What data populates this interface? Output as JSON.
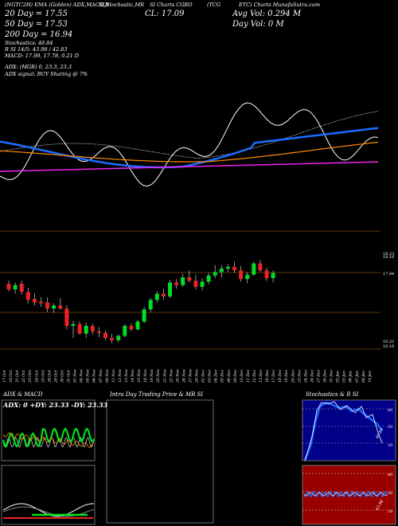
{
  "header": {
    "line1": [
      "(NGTC2H) EMA (Golden) ADX,MACD,R",
      "SI,Stochastic,MR",
      "SI Charts CGRO",
      "(TCG",
      "ETC) Charts MunafaSutra.com"
    ],
    "ma20": "20 Day = 17.55",
    "ma50": "50 Day = 17.53",
    "ma200": "200 Day = 16.94",
    "stoch": "Stochastics: 46.84",
    "rsi": "R          SI 14/5: 43.98 / 42.83",
    "macd": "MACD: 17.99, 17.78, 0.21 D",
    "adx": "ADX:                              (MGR) 0, 23.3, 23.3",
    "adx_signal": "ADX  signal:                                   BUY Sharing @ 7%",
    "cl": "CL: 17.09",
    "avg_vol": "Avg Vol: 0.294  M",
    "day_vol": "Day Vol: 0   M"
  },
  "colors": {
    "up": "#00dd22",
    "down": "#ee2222",
    "ma_blue": "#1a6cff",
    "ma_orange": "#ff8c00",
    "ma_magenta": "#ee22ee",
    "ref_line": "#7a4a12",
    "stoch_bg": "#000088",
    "rsi_bg": "#990000"
  },
  "price_labels": [
    "18.23",
    "18.16",
    "17.84",
    "16.22",
    "16.16"
  ],
  "date_labels": [
    "17 Oct",
    "18 Oct",
    "21 Oct",
    "22 Oct",
    "23 Oct",
    "24 Oct",
    "25 Oct",
    "28 Oct",
    "29 Oct",
    "30 Oct",
    "31 Oct",
    "01 Nov",
    "04 Nov",
    "05 Nov",
    "06 Nov",
    "07 Nov",
    "08 Nov",
    "11 Nov",
    "12 Nov",
    "13 Nov",
    "14 Nov",
    "15 Nov",
    "18 Nov",
    "19 Nov",
    "20 Nov",
    "21 Nov",
    "22 Nov",
    "25 Nov",
    "26 Nov",
    "27 Nov",
    "29 Nov",
    "02 Dec",
    "03 Dec",
    "04 Dec",
    "05 Dec",
    "06 Dec",
    "09 Dec",
    "10 Dec",
    "11 Dec",
    "12 Dec",
    "13 Dec",
    "16 Dec",
    "17 Dec",
    "18 Dec",
    "19 Dec",
    "20 Dec",
    "23 Dec",
    "24 Dec",
    "26 Dec",
    "27 Dec",
    "30 Dec",
    "31 Dec",
    "02 Jan",
    "03 Jan",
    "06 Jan",
    "07 Jan",
    "08 Jan",
    "10 Jan"
  ],
  "panels": {
    "adx_title": "ADX  & MACD",
    "adx_values": "ADX: 0  +DY: 23.33  -DY: 23.33",
    "intraday_title": "Intra  Day Trading Price  & MR                         SI",
    "stoch_title": "Stochastics & R                         SI",
    "stoch_scale": [
      "80",
      "50",
      "20"
    ],
    "stoch_value": "46.84",
    "rsi_scale": [
      "80",
      "50",
      "20"
    ],
    "rsi_value": "43.98"
  },
  "chart_data": {
    "type": "candlestick",
    "candles": [
      {
        "o": 17.55,
        "h": 17.62,
        "l": 17.38,
        "c": 17.42
      },
      {
        "o": 17.42,
        "h": 17.58,
        "l": 17.32,
        "c": 17.52
      },
      {
        "o": 17.55,
        "h": 17.62,
        "l": 17.3,
        "c": 17.37
      },
      {
        "o": 17.36,
        "h": 17.46,
        "l": 17.1,
        "c": 17.18
      },
      {
        "o": 17.2,
        "h": 17.34,
        "l": 17.05,
        "c": 17.12
      },
      {
        "o": 17.14,
        "h": 17.24,
        "l": 17.02,
        "c": 17.1
      },
      {
        "o": 17.12,
        "h": 17.24,
        "l": 16.9,
        "c": 16.98
      },
      {
        "o": 16.98,
        "h": 17.1,
        "l": 16.88,
        "c": 17.05
      },
      {
        "o": 17.05,
        "h": 17.22,
        "l": 16.95,
        "c": 16.98
      },
      {
        "o": 16.98,
        "h": 17.06,
        "l": 16.5,
        "c": 16.58
      },
      {
        "o": 16.58,
        "h": 16.7,
        "l": 16.3,
        "c": 16.62
      },
      {
        "o": 16.62,
        "h": 16.68,
        "l": 16.38,
        "c": 16.4
      },
      {
        "o": 16.4,
        "h": 16.65,
        "l": 16.3,
        "c": 16.58
      },
      {
        "o": 16.58,
        "h": 16.62,
        "l": 16.38,
        "c": 16.45
      },
      {
        "o": 16.45,
        "h": 16.55,
        "l": 16.32,
        "c": 16.42
      },
      {
        "o": 16.42,
        "h": 16.48,
        "l": 16.25,
        "c": 16.3
      },
      {
        "o": 16.3,
        "h": 16.4,
        "l": 16.18,
        "c": 16.25
      },
      {
        "o": 16.25,
        "h": 16.38,
        "l": 16.2,
        "c": 16.35
      },
      {
        "o": 16.35,
        "h": 16.62,
        "l": 16.32,
        "c": 16.58
      },
      {
        "o": 16.58,
        "h": 16.64,
        "l": 16.46,
        "c": 16.5
      },
      {
        "o": 16.5,
        "h": 16.72,
        "l": 16.48,
        "c": 16.68
      },
      {
        "o": 16.68,
        "h": 17.02,
        "l": 16.64,
        "c": 16.96
      },
      {
        "o": 16.96,
        "h": 17.22,
        "l": 16.9,
        "c": 17.18
      },
      {
        "o": 17.18,
        "h": 17.38,
        "l": 17.12,
        "c": 17.32
      },
      {
        "o": 17.32,
        "h": 17.44,
        "l": 17.18,
        "c": 17.26
      },
      {
        "o": 17.26,
        "h": 17.64,
        "l": 17.22,
        "c": 17.58
      },
      {
        "o": 17.58,
        "h": 17.66,
        "l": 17.44,
        "c": 17.52
      },
      {
        "o": 17.52,
        "h": 17.78,
        "l": 17.48,
        "c": 17.7
      },
      {
        "o": 17.7,
        "h": 17.86,
        "l": 17.58,
        "c": 17.62
      },
      {
        "o": 17.62,
        "h": 17.76,
        "l": 17.42,
        "c": 17.48
      },
      {
        "o": 17.48,
        "h": 17.68,
        "l": 17.4,
        "c": 17.6
      },
      {
        "o": 17.6,
        "h": 17.8,
        "l": 17.54,
        "c": 17.74
      },
      {
        "o": 17.74,
        "h": 17.98,
        "l": 17.68,
        "c": 17.82
      },
      {
        "o": 17.82,
        "h": 17.98,
        "l": 17.7,
        "c": 17.9
      },
      {
        "o": 17.9,
        "h": 18.0,
        "l": 17.82,
        "c": 17.94
      },
      {
        "o": 17.94,
        "h": 18.06,
        "l": 17.8,
        "c": 17.86
      },
      {
        "o": 17.86,
        "h": 17.96,
        "l": 17.6,
        "c": 17.66
      },
      {
        "o": 17.66,
        "h": 17.82,
        "l": 17.56,
        "c": 17.76
      },
      {
        "o": 17.76,
        "h": 18.06,
        "l": 17.74,
        "c": 18.02
      },
      {
        "o": 18.02,
        "h": 18.1,
        "l": 17.82,
        "c": 17.86
      },
      {
        "o": 17.86,
        "h": 17.92,
        "l": 17.62,
        "c": 17.68
      },
      {
        "o": 17.68,
        "h": 17.86,
        "l": 17.58,
        "c": 17.8
      }
    ],
    "y_axis_labels": [
      "18.23",
      "18.16",
      "17.84",
      "16.22",
      "16.16"
    ],
    "indicators": [
      "EMA 20",
      "EMA 50",
      "EMA 200",
      "close line"
    ]
  }
}
